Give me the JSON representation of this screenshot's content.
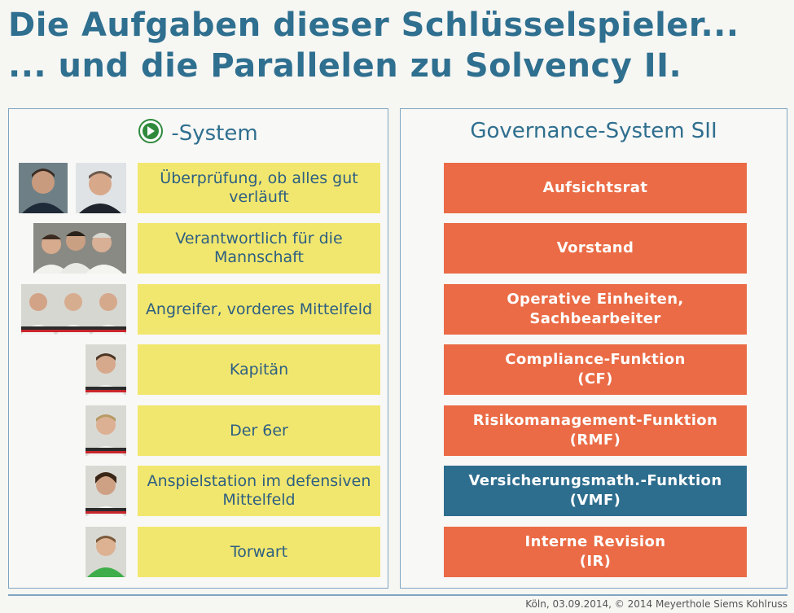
{
  "title": {
    "line1": "Die Aufgaben dieser Schlüsselspieler...",
    "line2": "... und die Parallelen zu Solvency II."
  },
  "left_panel": {
    "heading": "-System",
    "logo_icon": "dfb-logo-icon",
    "roles": [
      "Überprüfung, ob alles gut verläuft",
      "Verantwortlich für die Mannschaft",
      "Angreifer, vorderes Mittelfeld",
      "Kapitän",
      "Der 6er",
      "Anspielstation im defensiven Mittelfeld",
      "Torwart"
    ]
  },
  "right_panel": {
    "heading": "Governance-System SII",
    "functions": [
      {
        "line1": "Aufsichtsrat",
        "line2": ""
      },
      {
        "line1": "Vorstand",
        "line2": ""
      },
      {
        "line1": "Operative Einheiten,",
        "line2": "Sachbearbeiter"
      },
      {
        "line1": "Compliance-Funktion",
        "line2": "(CF)"
      },
      {
        "line1": "Risikomanagement-Funktion",
        "line2": "(RMF)"
      },
      {
        "line1": "Versicherungsmath.-Funktion",
        "line2": "(VMF)"
      },
      {
        "line1": "Interne Revision",
        "line2": "(IR)"
      }
    ]
  },
  "colors": {
    "title": "#2f6f8f",
    "yellow_box": "#f2e76e",
    "orange_box": "#ea6b45",
    "highlight_box": "#2d6d8e"
  },
  "footer": "Köln, 03.09.2014, © 2014 Meyerthole Siems Kohlruss"
}
